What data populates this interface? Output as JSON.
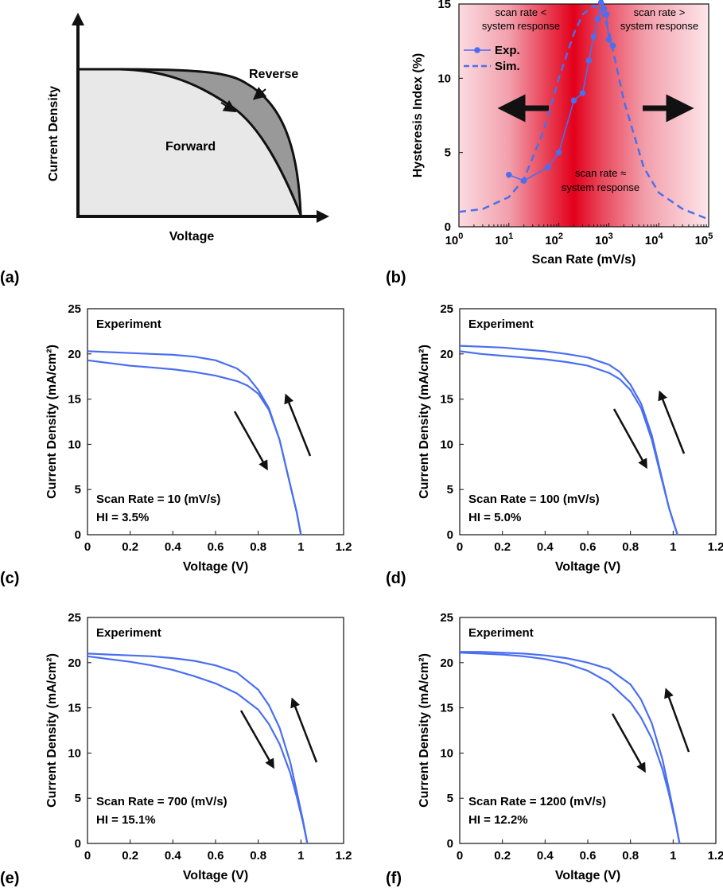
{
  "panel_labels": [
    "(a)",
    "(b)",
    "(c)",
    "(d)",
    "(e)",
    "(f)"
  ],
  "colors": {
    "data_blue": "#4a6ef0",
    "sim_blue": "#4d6fe8",
    "arrow": "#111111",
    "forward_fill": "#e8e8e8",
    "hysteresis_fill": "#999999"
  },
  "schematic": {
    "ylabel": "Current Density",
    "xlabel": "Voltage",
    "forward_label": "Forward",
    "reverse_label": "Reverse"
  },
  "chart_data": [
    {
      "type": "line",
      "panel": "(b)",
      "xlabel": "Scan Rate (mV/s)",
      "ylabel": "Hysteresis Index (%)",
      "xscale": "log",
      "xlim": [
        1,
        100000
      ],
      "ylim": [
        0,
        15
      ],
      "xticks": [
        "10^0",
        "10^1",
        "10^2",
        "10^3",
        "10^4",
        "10^5"
      ],
      "yticks": [
        0,
        5,
        10,
        15
      ],
      "legend_position": "upper-left",
      "legend": [
        "Exp.",
        "Sim."
      ],
      "region_labels": {
        "left": [
          "scan rate <",
          "system response"
        ],
        "right": [
          "scan rate >",
          "system response"
        ],
        "center": [
          "scan rate ≈",
          "system response"
        ]
      },
      "series": [
        {
          "name": "Exp.",
          "style": "solid-markers",
          "x": [
            10,
            20,
            60,
            100,
            200,
            300,
            400,
            500,
            600,
            700,
            800,
            900,
            1000,
            1200
          ],
          "y": [
            3.5,
            3.1,
            4.0,
            5.0,
            8.5,
            9.0,
            11.2,
            12.8,
            14.0,
            15.1,
            14.7,
            14.3,
            12.6,
            12.2
          ]
        },
        {
          "name": "Sim.",
          "style": "dashed",
          "x": [
            1,
            3,
            10,
            20,
            50,
            100,
            200,
            300,
            500,
            700,
            1000,
            2000,
            5000,
            10000,
            30000,
            100000
          ],
          "y": [
            1.0,
            1.2,
            2.0,
            3.2,
            6.5,
            10.0,
            13.0,
            14.3,
            14.9,
            14.6,
            13.2,
            8.5,
            4.0,
            2.3,
            1.2,
            0.5
          ]
        }
      ]
    },
    {
      "type": "line",
      "panel": "(c)",
      "xlabel": "Voltage (V)",
      "ylabel": "Current Density (mA/cm²)",
      "xlim": [
        0,
        1.2
      ],
      "ylim": [
        0,
        25
      ],
      "xticks": [
        0,
        0.2,
        0.4,
        0.6,
        0.8,
        1,
        1.2
      ],
      "yticks": [
        0,
        5,
        10,
        15,
        20,
        25
      ],
      "title": "Experiment",
      "annotation": [
        "Scan Rate = 10 (mV/s)",
        "HI = 3.5%"
      ],
      "series": [
        {
          "name": "",
          "direction": "reverse",
          "x": [
            0,
            0.1,
            0.2,
            0.3,
            0.4,
            0.5,
            0.6,
            0.7,
            0.75,
            0.8,
            0.85,
            0.9,
            0.95,
            0.98,
            1.0
          ],
          "y": [
            20.3,
            20.2,
            20.1,
            20.0,
            19.9,
            19.7,
            19.3,
            18.4,
            17.5,
            16.0,
            14.0,
            10.5,
            5.5,
            2.5,
            0
          ]
        },
        {
          "name": "",
          "direction": "forward",
          "x": [
            0,
            0.1,
            0.2,
            0.3,
            0.4,
            0.5,
            0.6,
            0.7,
            0.75,
            0.8,
            0.85,
            0.9,
            0.95,
            0.98,
            1.0
          ],
          "y": [
            19.3,
            19.0,
            18.7,
            18.5,
            18.3,
            18.0,
            17.6,
            17.0,
            16.5,
            15.6,
            13.8,
            10.5,
            5.5,
            2.5,
            0
          ]
        }
      ]
    },
    {
      "type": "line",
      "panel": "(d)",
      "xlabel": "Voltage (V)",
      "ylabel": "Current Density (mA/cm²)",
      "xlim": [
        0,
        1.2
      ],
      "ylim": [
        0,
        25
      ],
      "xticks": [
        0,
        0.2,
        0.4,
        0.6,
        0.8,
        1,
        1.2
      ],
      "yticks": [
        0,
        5,
        10,
        15,
        20,
        25
      ],
      "title": "Experiment",
      "annotation": [
        "Scan Rate = 100 (mV/s)",
        "HI = 5.0%"
      ],
      "series": [
        {
          "name": "",
          "direction": "reverse",
          "x": [
            0,
            0.1,
            0.2,
            0.3,
            0.4,
            0.5,
            0.6,
            0.7,
            0.75,
            0.8,
            0.85,
            0.9,
            0.95,
            0.98,
            1.02
          ],
          "y": [
            20.9,
            20.8,
            20.7,
            20.5,
            20.3,
            20.0,
            19.6,
            18.8,
            18.0,
            16.6,
            14.5,
            11.0,
            6.0,
            3.0,
            0
          ]
        },
        {
          "name": "",
          "direction": "forward",
          "x": [
            0,
            0.1,
            0.2,
            0.3,
            0.4,
            0.5,
            0.6,
            0.7,
            0.75,
            0.8,
            0.85,
            0.9,
            0.95,
            0.98,
            1.02
          ],
          "y": [
            20.3,
            20.0,
            19.8,
            19.6,
            19.4,
            19.1,
            18.7,
            17.9,
            17.2,
            16.0,
            14.0,
            10.5,
            5.8,
            3.0,
            0
          ]
        }
      ]
    },
    {
      "type": "line",
      "panel": "(e)",
      "xlabel": "Voltage (V)",
      "ylabel": "Current Density (mA/cm²)",
      "xlim": [
        0,
        1.2
      ],
      "ylim": [
        0,
        25
      ],
      "xticks": [
        0,
        0.2,
        0.4,
        0.6,
        0.8,
        1,
        1.2
      ],
      "yticks": [
        0,
        5,
        10,
        15,
        20,
        25
      ],
      "title": "Experiment",
      "annotation": [
        "Scan Rate = 700 (mV/s)",
        "HI = 15.1%"
      ],
      "series": [
        {
          "name": "",
          "direction": "reverse",
          "x": [
            0,
            0.1,
            0.2,
            0.3,
            0.4,
            0.5,
            0.6,
            0.7,
            0.8,
            0.85,
            0.9,
            0.95,
            0.98,
            1.01,
            1.03
          ],
          "y": [
            21.0,
            20.9,
            20.8,
            20.7,
            20.5,
            20.2,
            19.7,
            18.9,
            17.0,
            15.3,
            12.8,
            9.0,
            5.8,
            2.5,
            0
          ]
        },
        {
          "name": "",
          "direction": "forward",
          "x": [
            0,
            0.1,
            0.2,
            0.3,
            0.4,
            0.5,
            0.6,
            0.7,
            0.8,
            0.85,
            0.9,
            0.95,
            0.98,
            1.01,
            1.03
          ],
          "y": [
            20.7,
            20.4,
            20.1,
            19.7,
            19.2,
            18.5,
            17.7,
            16.6,
            14.8,
            13.2,
            11.0,
            7.8,
            5.2,
            2.3,
            0
          ]
        }
      ]
    },
    {
      "type": "line",
      "panel": "(f)",
      "xlabel": "Voltage (V)",
      "ylabel": "Current Density (mA/cm²)",
      "xlim": [
        0,
        1.2
      ],
      "ylim": [
        0,
        25
      ],
      "xticks": [
        0,
        0.2,
        0.4,
        0.6,
        0.8,
        1,
        1.2
      ],
      "yticks": [
        0,
        5,
        10,
        15,
        20,
        25
      ],
      "title": "Experiment",
      "annotation": [
        "Scan Rate = 1200 (mV/s)",
        "HI = 12.2%"
      ],
      "series": [
        {
          "name": "",
          "direction": "reverse",
          "x": [
            0,
            0.1,
            0.2,
            0.3,
            0.4,
            0.5,
            0.6,
            0.7,
            0.8,
            0.85,
            0.9,
            0.95,
            0.98,
            1.01,
            1.03
          ],
          "y": [
            21.2,
            21.2,
            21.1,
            21.0,
            20.8,
            20.5,
            20.0,
            19.3,
            17.6,
            15.9,
            13.3,
            9.3,
            6.0,
            2.6,
            0
          ]
        },
        {
          "name": "",
          "direction": "forward",
          "x": [
            0,
            0.1,
            0.2,
            0.3,
            0.4,
            0.5,
            0.6,
            0.7,
            0.8,
            0.85,
            0.9,
            0.95,
            0.98,
            1.01,
            1.03
          ],
          "y": [
            21.1,
            21.0,
            20.9,
            20.7,
            20.4,
            19.9,
            19.1,
            17.8,
            15.6,
            13.9,
            11.6,
            8.2,
            5.5,
            2.4,
            0
          ]
        }
      ]
    }
  ]
}
